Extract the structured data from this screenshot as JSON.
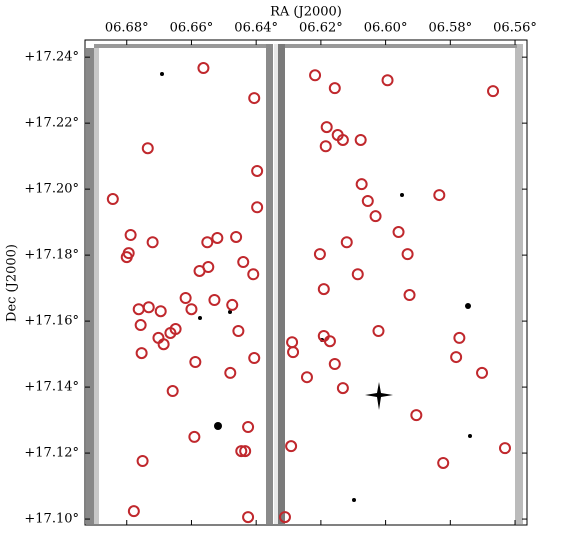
{
  "chart_data": {
    "type": "scatter",
    "xlabel": "RA (J2000)",
    "ylabel": "Dec (J2000)",
    "xlim": [
      6.6929,
      6.5563
    ],
    "ylim": [
      17.0982,
      17.2452
    ],
    "xticks": [
      {
        "value": 6.68,
        "label": "06.68°"
      },
      {
        "value": 6.66,
        "label": "06.66°"
      },
      {
        "value": 6.64,
        "label": "06.64°"
      },
      {
        "value": 6.62,
        "label": "06.62°"
      },
      {
        "value": 6.6,
        "label": "06.60°"
      },
      {
        "value": 6.58,
        "label": "06.58°"
      },
      {
        "value": 6.56,
        "label": "06.56°"
      }
    ],
    "yticks": [
      {
        "value": 17.24,
        "label": "+17.24°"
      },
      {
        "value": 17.22,
        "label": "+17.22°"
      },
      {
        "value": 17.2,
        "label": "+17.20°"
      },
      {
        "value": 17.18,
        "label": "+17.18°"
      },
      {
        "value": 17.16,
        "label": "+17.16°"
      },
      {
        "value": 17.14,
        "label": "+17.14°"
      },
      {
        "value": 17.12,
        "label": "+17.12°"
      },
      {
        "value": 17.1,
        "label": "+17.10°"
      }
    ],
    "series": [
      {
        "color": "#c0282d",
        "x": [
          6.6563,
          6.6406,
          6.6735,
          6.6843,
          6.6397,
          6.6397,
          6.6788,
          6.672,
          6.6794,
          6.68,
          6.6551,
          6.652,
          6.6462,
          6.6548,
          6.6575,
          6.644,
          6.6409,
          6.6618,
          6.66,
          6.6529,
          6.6474,
          6.6763,
          6.6732,
          6.6695,
          6.6757,
          6.6649,
          6.6665,
          6.6702,
          6.6686,
          6.6455,
          6.6754,
          6.6588,
          6.6406,
          6.648,
          6.6658,
          6.6591,
          6.6425,
          6.6446,
          6.6434,
          6.6751,
          6.6778,
          6.6425,
          6.6311,
          6.6218,
          6.6157,
          6.5994,
          6.5668,
          6.6182,
          6.6148,
          6.6132,
          6.6185,
          6.6077,
          6.6074,
          6.6055,
          6.6031,
          6.5834,
          6.596,
          6.612,
          6.5932,
          6.6203,
          6.6086,
          6.6191,
          6.5926,
          6.6022,
          6.6191,
          6.6172,
          6.6289,
          6.6286,
          6.5772,
          6.5782,
          6.6157,
          6.6243,
          6.6132,
          6.5702,
          6.5905,
          6.6292,
          6.5822,
          6.5631
        ],
        "y": [
          17.2367,
          17.2276,
          17.2124,
          17.197,
          17.2055,
          17.1945,
          17.1861,
          17.1839,
          17.1806,
          17.1794,
          17.1839,
          17.1852,
          17.1855,
          17.1764,
          17.1752,
          17.1779,
          17.1742,
          17.167,
          17.1636,
          17.1664,
          17.1649,
          17.1636,
          17.1642,
          17.163,
          17.1588,
          17.1576,
          17.1564,
          17.1549,
          17.153,
          17.157,
          17.1503,
          17.1476,
          17.1488,
          17.1443,
          17.1388,
          17.1249,
          17.1279,
          17.1206,
          17.1206,
          17.1176,
          17.1024,
          17.1006,
          17.1006,
          17.2345,
          17.2306,
          17.233,
          17.2297,
          17.2188,
          17.2164,
          17.2149,
          17.213,
          17.2149,
          17.2015,
          17.1964,
          17.1918,
          17.1982,
          17.187,
          17.1839,
          17.1803,
          17.1803,
          17.1742,
          17.1697,
          17.1679,
          17.157,
          17.1555,
          17.1539,
          17.1536,
          17.1506,
          17.1549,
          17.1491,
          17.147,
          17.143,
          17.1397,
          17.1443,
          17.1315,
          17.1221,
          17.117,
          17.1215
        ]
      }
    ]
  }
}
